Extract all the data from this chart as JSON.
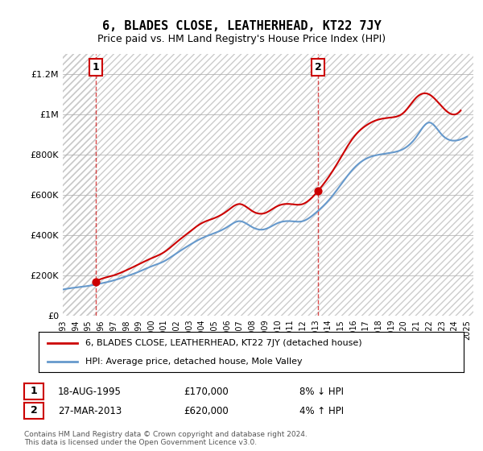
{
  "title": "6, BLADES CLOSE, LEATHERHEAD, KT22 7JY",
  "subtitle": "Price paid vs. HM Land Registry's House Price Index (HPI)",
  "legend_line1": "6, BLADES CLOSE, LEATHERHEAD, KT22 7JY (detached house)",
  "legend_line2": "HPI: Average price, detached house, Mole Valley",
  "annotation1_label": "1",
  "annotation1_date": "18-AUG-1995",
  "annotation1_price": "£170,000",
  "annotation1_hpi": "8% ↓ HPI",
  "annotation1_year": 1995.6,
  "annotation1_value": 170000,
  "annotation2_label": "2",
  "annotation2_date": "27-MAR-2013",
  "annotation2_price": "£620,000",
  "annotation2_hpi": "4% ↑ HPI",
  "annotation2_year": 2013.2,
  "annotation2_value": 620000,
  "footer": "Contains HM Land Registry data © Crown copyright and database right 2024.\nThis data is licensed under the Open Government Licence v3.0.",
  "price_paid_color": "#cc0000",
  "hpi_color": "#6699cc",
  "hatch_color": "#cccccc",
  "background_color": "#ffffff",
  "ylim": [
    0,
    1300000
  ],
  "xlim_start": 1993,
  "xlim_end": 2025.5,
  "price_paid_years": [
    1995.6,
    2013.2
  ],
  "price_paid_values": [
    170000,
    620000
  ],
  "hpi_years": [
    1993,
    1994,
    1995,
    1996,
    1997,
    1998,
    1999,
    2000,
    2001,
    2002,
    2003,
    2004,
    2005,
    2006,
    2007,
    2008,
    2009,
    2010,
    2011,
    2012,
    2013,
    2014,
    2015,
    2016,
    2017,
    2018,
    2019,
    2020,
    2021,
    2022,
    2023,
    2024,
    2025
  ],
  "hpi_values": [
    130000,
    140000,
    148000,
    160000,
    175000,
    195000,
    218000,
    245000,
    270000,
    310000,
    350000,
    385000,
    410000,
    440000,
    470000,
    440000,
    430000,
    460000,
    470000,
    470000,
    510000,
    570000,
    650000,
    730000,
    780000,
    800000,
    810000,
    830000,
    890000,
    960000,
    900000,
    870000,
    890000
  ]
}
